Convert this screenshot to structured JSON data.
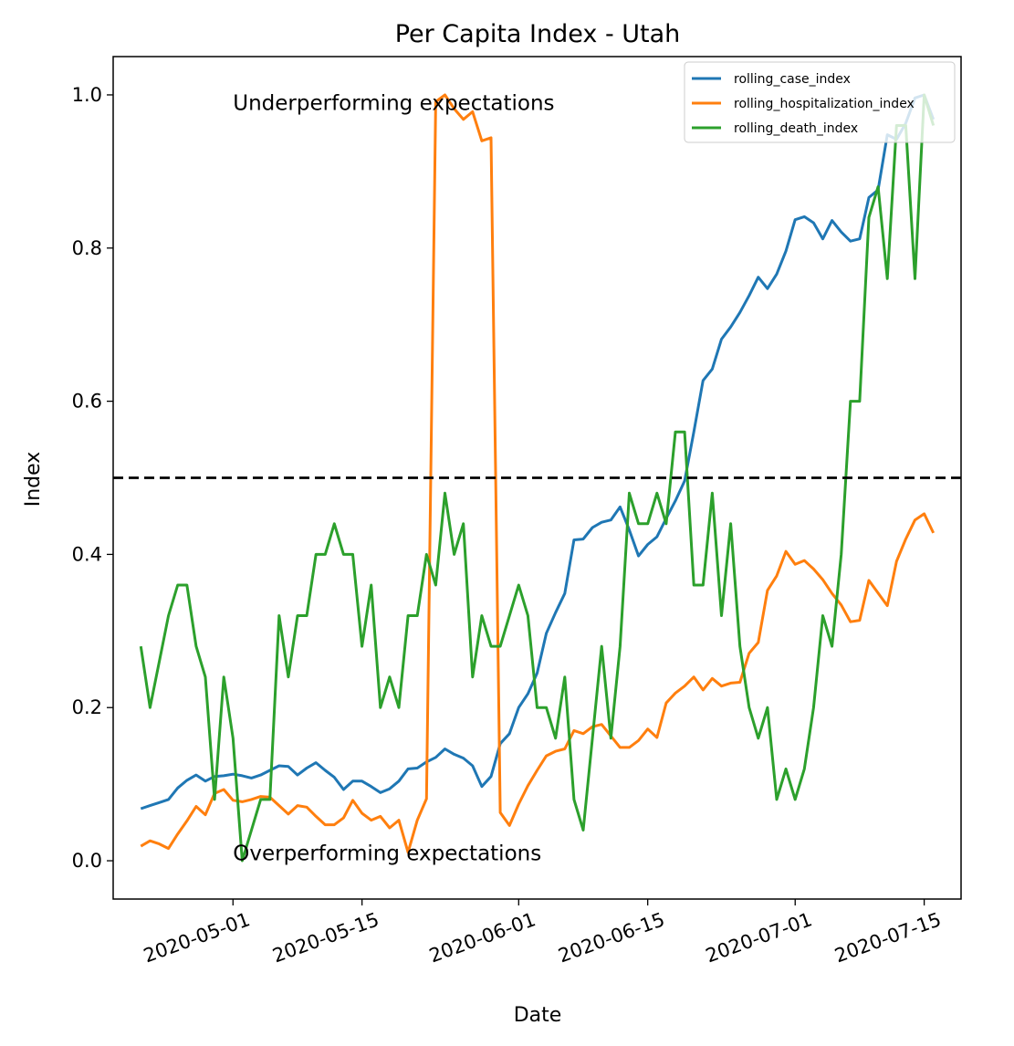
{
  "chart_data": {
    "type": "line",
    "title": "Per Capita Index - Utah",
    "xlabel": "Date",
    "ylabel": "Index",
    "x_tick_labels": [
      "2020-05-01",
      "2020-05-15",
      "2020-06-01",
      "2020-06-15",
      "2020-07-01",
      "2020-07-15"
    ],
    "y_tick_labels": [
      "0.0",
      "0.2",
      "0.4",
      "0.6",
      "0.8",
      "1.0"
    ],
    "xlim": [
      "2020-04-18",
      "2020-07-19"
    ],
    "ylim": [
      -0.05,
      1.05
    ],
    "reference_line": {
      "y": 0.5,
      "style": "dashed",
      "color": "#000000"
    },
    "annotations": [
      {
        "text": "Underperforming expectations",
        "x": "2020-05-01",
        "y": 0.99
      },
      {
        "text": "Overperforming expectations",
        "x": "2020-05-01",
        "y": 0.01
      }
    ],
    "legend_position": "top-right",
    "grid": false,
    "series": [
      {
        "name": "rolling_case_index",
        "color": "#1f77b4",
        "points": [
          [
            "2020-04-21",
            0.068
          ],
          [
            "2020-04-22",
            0.072
          ],
          [
            "2020-04-23",
            0.076
          ],
          [
            "2020-04-24",
            0.08
          ],
          [
            "2020-04-25",
            0.095
          ],
          [
            "2020-04-26",
            0.105
          ],
          [
            "2020-04-27",
            0.112
          ],
          [
            "2020-04-28",
            0.104
          ],
          [
            "2020-04-29",
            0.11
          ],
          [
            "2020-04-30",
            0.111
          ],
          [
            "2020-05-01",
            0.113
          ],
          [
            "2020-05-02",
            0.111
          ],
          [
            "2020-05-03",
            0.108
          ],
          [
            "2020-05-04",
            0.112
          ],
          [
            "2020-05-05",
            0.118
          ],
          [
            "2020-05-06",
            0.124
          ],
          [
            "2020-05-07",
            0.123
          ],
          [
            "2020-05-08",
            0.112
          ],
          [
            "2020-05-09",
            0.121
          ],
          [
            "2020-05-10",
            0.128
          ],
          [
            "2020-05-11",
            0.118
          ],
          [
            "2020-05-12",
            0.109
          ],
          [
            "2020-05-13",
            0.093
          ],
          [
            "2020-05-14",
            0.104
          ],
          [
            "2020-05-15",
            0.104
          ],
          [
            "2020-05-16",
            0.097
          ],
          [
            "2020-05-17",
            0.089
          ],
          [
            "2020-05-18",
            0.094
          ],
          [
            "2020-05-19",
            0.104
          ],
          [
            "2020-05-20",
            0.12
          ],
          [
            "2020-05-21",
            0.121
          ],
          [
            "2020-05-22",
            0.129
          ],
          [
            "2020-05-23",
            0.135
          ],
          [
            "2020-05-24",
            0.146
          ],
          [
            "2020-05-25",
            0.139
          ],
          [
            "2020-05-26",
            0.134
          ],
          [
            "2020-05-27",
            0.124
          ],
          [
            "2020-05-28",
            0.097
          ],
          [
            "2020-05-29",
            0.11
          ],
          [
            "2020-05-30",
            0.153
          ],
          [
            "2020-05-31",
            0.166
          ],
          [
            "2020-06-01",
            0.2
          ],
          [
            "2020-06-02",
            0.218
          ],
          [
            "2020-06-03",
            0.245
          ],
          [
            "2020-06-04",
            0.297
          ],
          [
            "2020-06-05",
            0.324
          ],
          [
            "2020-06-06",
            0.349
          ],
          [
            "2020-06-07",
            0.419
          ],
          [
            "2020-06-08",
            0.42
          ],
          [
            "2020-06-09",
            0.435
          ],
          [
            "2020-06-10",
            0.442
          ],
          [
            "2020-06-11",
            0.445
          ],
          [
            "2020-06-12",
            0.462
          ],
          [
            "2020-06-13",
            0.432
          ],
          [
            "2020-06-14",
            0.398
          ],
          [
            "2020-06-15",
            0.413
          ],
          [
            "2020-06-16",
            0.423
          ],
          [
            "2020-06-17",
            0.447
          ],
          [
            "2020-06-18",
            0.47
          ],
          [
            "2020-06-19",
            0.496
          ],
          [
            "2020-06-20",
            0.56
          ],
          [
            "2020-06-21",
            0.627
          ],
          [
            "2020-06-22",
            0.642
          ],
          [
            "2020-06-23",
            0.681
          ],
          [
            "2020-06-24",
            0.697
          ],
          [
            "2020-06-25",
            0.716
          ],
          [
            "2020-06-26",
            0.738
          ],
          [
            "2020-06-27",
            0.762
          ],
          [
            "2020-06-28",
            0.747
          ],
          [
            "2020-06-29",
            0.766
          ],
          [
            "2020-06-30",
            0.796
          ],
          [
            "2020-07-01",
            0.837
          ],
          [
            "2020-07-02",
            0.841
          ],
          [
            "2020-07-03",
            0.833
          ],
          [
            "2020-07-04",
            0.812
          ],
          [
            "2020-07-05",
            0.836
          ],
          [
            "2020-07-06",
            0.821
          ],
          [
            "2020-07-07",
            0.809
          ],
          [
            "2020-07-08",
            0.812
          ],
          [
            "2020-07-09",
            0.866
          ],
          [
            "2020-07-10",
            0.876
          ],
          [
            "2020-07-11",
            0.948
          ],
          [
            "2020-07-12",
            0.942
          ],
          [
            "2020-07-13",
            0.963
          ],
          [
            "2020-07-14",
            0.996
          ],
          [
            "2020-07-15",
            1.0
          ],
          [
            "2020-07-16",
            0.968
          ]
        ]
      },
      {
        "name": "rolling_hospitalization_index",
        "color": "#ff7f0e",
        "points": [
          [
            "2020-04-21",
            0.019
          ],
          [
            "2020-04-22",
            0.026
          ],
          [
            "2020-04-23",
            0.022
          ],
          [
            "2020-04-24",
            0.016
          ],
          [
            "2020-04-25",
            0.035
          ],
          [
            "2020-04-26",
            0.052
          ],
          [
            "2020-04-27",
            0.071
          ],
          [
            "2020-04-28",
            0.06
          ],
          [
            "2020-04-29",
            0.088
          ],
          [
            "2020-04-30",
            0.093
          ],
          [
            "2020-05-01",
            0.079
          ],
          [
            "2020-05-02",
            0.077
          ],
          [
            "2020-05-03",
            0.08
          ],
          [
            "2020-05-04",
            0.084
          ],
          [
            "2020-05-05",
            0.083
          ],
          [
            "2020-05-06",
            0.072
          ],
          [
            "2020-05-07",
            0.061
          ],
          [
            "2020-05-08",
            0.072
          ],
          [
            "2020-05-09",
            0.07
          ],
          [
            "2020-05-10",
            0.058
          ],
          [
            "2020-05-11",
            0.047
          ],
          [
            "2020-05-12",
            0.047
          ],
          [
            "2020-05-13",
            0.056
          ],
          [
            "2020-05-14",
            0.079
          ],
          [
            "2020-05-15",
            0.062
          ],
          [
            "2020-05-16",
            0.053
          ],
          [
            "2020-05-17",
            0.058
          ],
          [
            "2020-05-18",
            0.043
          ],
          [
            "2020-05-19",
            0.053
          ],
          [
            "2020-05-20",
            0.011
          ],
          [
            "2020-05-21",
            0.053
          ],
          [
            "2020-05-22",
            0.081
          ],
          [
            "2020-05-23",
            0.991
          ],
          [
            "2020-05-24",
            1.0
          ],
          [
            "2020-05-25",
            0.982
          ],
          [
            "2020-05-26",
            0.968
          ],
          [
            "2020-05-27",
            0.978
          ],
          [
            "2020-05-28",
            0.94
          ],
          [
            "2020-05-29",
            0.944
          ],
          [
            "2020-05-30",
            0.063
          ],
          [
            "2020-05-31",
            0.046
          ],
          [
            "2020-06-01",
            0.074
          ],
          [
            "2020-06-02",
            0.098
          ],
          [
            "2020-06-03",
            0.118
          ],
          [
            "2020-06-04",
            0.137
          ],
          [
            "2020-06-05",
            0.143
          ],
          [
            "2020-06-06",
            0.146
          ],
          [
            "2020-06-07",
            0.17
          ],
          [
            "2020-06-08",
            0.166
          ],
          [
            "2020-06-09",
            0.175
          ],
          [
            "2020-06-10",
            0.178
          ],
          [
            "2020-06-11",
            0.163
          ],
          [
            "2020-06-12",
            0.148
          ],
          [
            "2020-06-13",
            0.148
          ],
          [
            "2020-06-14",
            0.157
          ],
          [
            "2020-06-15",
            0.172
          ],
          [
            "2020-06-16",
            0.161
          ],
          [
            "2020-06-17",
            0.206
          ],
          [
            "2020-06-18",
            0.219
          ],
          [
            "2020-06-19",
            0.228
          ],
          [
            "2020-06-20",
            0.24
          ],
          [
            "2020-06-21",
            0.223
          ],
          [
            "2020-06-22",
            0.238
          ],
          [
            "2020-06-23",
            0.228
          ],
          [
            "2020-06-24",
            0.232
          ],
          [
            "2020-06-25",
            0.233
          ],
          [
            "2020-06-26",
            0.271
          ],
          [
            "2020-06-27",
            0.285
          ],
          [
            "2020-06-28",
            0.353
          ],
          [
            "2020-06-29",
            0.372
          ],
          [
            "2020-06-30",
            0.404
          ],
          [
            "2020-07-01",
            0.387
          ],
          [
            "2020-07-02",
            0.392
          ],
          [
            "2020-07-03",
            0.381
          ],
          [
            "2020-07-04",
            0.367
          ],
          [
            "2020-07-05",
            0.349
          ],
          [
            "2020-07-06",
            0.334
          ],
          [
            "2020-07-07",
            0.312
          ],
          [
            "2020-07-08",
            0.314
          ],
          [
            "2020-07-09",
            0.366
          ],
          [
            "2020-07-11",
            0.333
          ],
          [
            "2020-07-12",
            0.391
          ],
          [
            "2020-07-13",
            0.42
          ],
          [
            "2020-07-14",
            0.445
          ],
          [
            "2020-07-15",
            0.453
          ],
          [
            "2020-07-16",
            0.428
          ]
        ]
      },
      {
        "name": "rolling_death_index",
        "color": "#2ca02c",
        "points": [
          [
            "2020-04-21",
            0.28
          ],
          [
            "2020-04-22",
            0.2
          ],
          [
            "2020-04-23",
            0.26
          ],
          [
            "2020-04-24",
            0.32
          ],
          [
            "2020-04-25",
            0.36
          ],
          [
            "2020-04-26",
            0.36
          ],
          [
            "2020-04-27",
            0.28
          ],
          [
            "2020-04-28",
            0.24
          ],
          [
            "2020-04-29",
            0.08
          ],
          [
            "2020-04-30",
            0.24
          ],
          [
            "2020-05-01",
            0.16
          ],
          [
            "2020-05-02",
            0.0
          ],
          [
            "2020-05-03",
            0.04
          ],
          [
            "2020-05-04",
            0.08
          ],
          [
            "2020-05-05",
            0.08
          ],
          [
            "2020-05-06",
            0.32
          ],
          [
            "2020-05-07",
            0.24
          ],
          [
            "2020-05-08",
            0.32
          ],
          [
            "2020-05-09",
            0.32
          ],
          [
            "2020-05-10",
            0.4
          ],
          [
            "2020-05-11",
            0.4
          ],
          [
            "2020-05-12",
            0.44
          ],
          [
            "2020-05-13",
            0.4
          ],
          [
            "2020-05-14",
            0.4
          ],
          [
            "2020-05-15",
            0.28
          ],
          [
            "2020-05-16",
            0.36
          ],
          [
            "2020-05-17",
            0.2
          ],
          [
            "2020-05-18",
            0.24
          ],
          [
            "2020-05-19",
            0.2
          ],
          [
            "2020-05-20",
            0.32
          ],
          [
            "2020-05-21",
            0.32
          ],
          [
            "2020-05-22",
            0.4
          ],
          [
            "2020-05-23",
            0.36
          ],
          [
            "2020-05-24",
            0.48
          ],
          [
            "2020-05-25",
            0.4
          ],
          [
            "2020-05-26",
            0.44
          ],
          [
            "2020-05-27",
            0.24
          ],
          [
            "2020-05-28",
            0.32
          ],
          [
            "2020-05-29",
            0.28
          ],
          [
            "2020-05-30",
            0.28
          ],
          [
            "2020-05-31",
            0.32
          ],
          [
            "2020-06-01",
            0.36
          ],
          [
            "2020-06-02",
            0.32
          ],
          [
            "2020-06-03",
            0.2
          ],
          [
            "2020-06-04",
            0.2
          ],
          [
            "2020-06-05",
            0.16
          ],
          [
            "2020-06-06",
            0.24
          ],
          [
            "2020-06-07",
            0.08
          ],
          [
            "2020-06-08",
            0.04
          ],
          [
            "2020-06-09",
            0.16
          ],
          [
            "2020-06-10",
            0.28
          ],
          [
            "2020-06-11",
            0.16
          ],
          [
            "2020-06-12",
            0.28
          ],
          [
            "2020-06-13",
            0.48
          ],
          [
            "2020-06-14",
            0.44
          ],
          [
            "2020-06-15",
            0.44
          ],
          [
            "2020-06-16",
            0.48
          ],
          [
            "2020-06-17",
            0.44
          ],
          [
            "2020-06-18",
            0.56
          ],
          [
            "2020-06-19",
            0.56
          ],
          [
            "2020-06-20",
            0.36
          ],
          [
            "2020-06-21",
            0.36
          ],
          [
            "2020-06-22",
            0.48
          ],
          [
            "2020-06-23",
            0.32
          ],
          [
            "2020-06-24",
            0.44
          ],
          [
            "2020-06-25",
            0.28
          ],
          [
            "2020-06-26",
            0.2
          ],
          [
            "2020-06-27",
            0.16
          ],
          [
            "2020-06-28",
            0.2
          ],
          [
            "2020-06-29",
            0.08
          ],
          [
            "2020-06-30",
            0.12
          ],
          [
            "2020-07-01",
            0.08
          ],
          [
            "2020-07-02",
            0.12
          ],
          [
            "2020-07-03",
            0.2
          ],
          [
            "2020-07-04",
            0.32
          ],
          [
            "2020-07-05",
            0.28
          ],
          [
            "2020-07-06",
            0.4
          ],
          [
            "2020-07-07",
            0.6
          ],
          [
            "2020-07-08",
            0.6
          ],
          [
            "2020-07-09",
            0.84
          ],
          [
            "2020-07-10",
            0.88
          ],
          [
            "2020-07-11",
            0.76
          ],
          [
            "2020-07-12",
            0.96
          ],
          [
            "2020-07-13",
            0.96
          ],
          [
            "2020-07-14",
            0.76
          ],
          [
            "2020-07-15",
            1.0
          ],
          [
            "2020-07-16",
            0.96
          ]
        ]
      }
    ]
  }
}
